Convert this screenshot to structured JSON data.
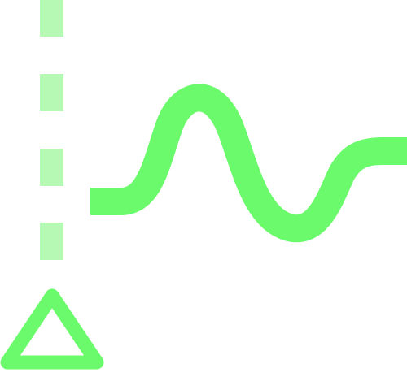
{
  "icon": {
    "name": "signal-wave-with-triangle-icon",
    "parts": [
      "dashed-vertical-line",
      "wave-signal",
      "triangle-outline"
    ]
  },
  "colors": {
    "background": "#ffffff",
    "stroke": "#6bfa6b",
    "dash": "#b5f9b5"
  }
}
